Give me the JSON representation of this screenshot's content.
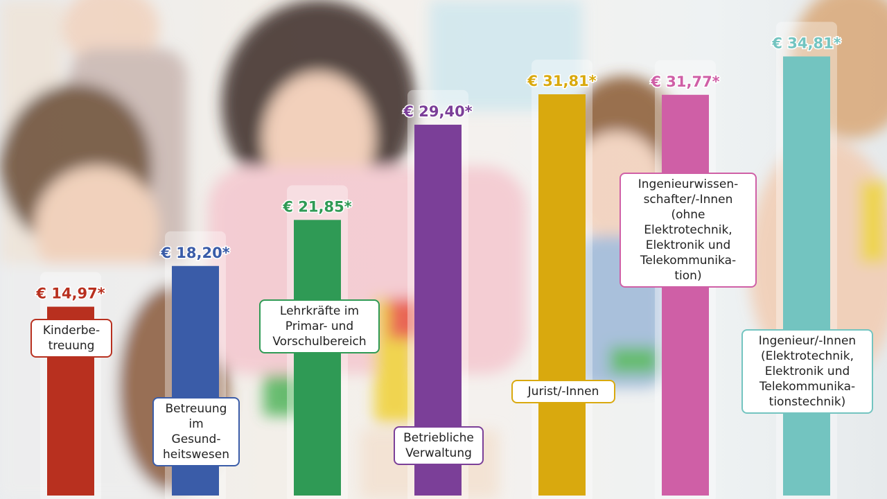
{
  "chart_data": {
    "type": "bar",
    "categories": [
      "Kinderbe-\ntreuung",
      "Betreuung\nim\nGesund-\nheitswesen",
      "Lehrkräfte im\nPrimar- und\nVorschulbereich",
      "Betriebliche\nVerwaltung",
      "Jurist/-Innen",
      "Ingenieurwissen-\nschafter/-Innen\n(ohne\nElektrotechnik,\nElektronik und\nTelekommunika-\ntion)",
      "Ingenieur/-Innen\n(Elektrotechnik,\nElektronik und\nTelekommunika-\ntionstechnik)"
    ],
    "values": [
      14.97,
      18.2,
      21.85,
      29.4,
      31.81,
      31.77,
      34.81
    ],
    "value_labels": [
      "€ 14,97*",
      "€ 18,20*",
      "€ 21,85*",
      "€ 29,40*",
      "€ 31,81*",
      "€ 31,77*",
      "€ 34,81*"
    ],
    "colors": [
      "#b8301f",
      "#3a5ca8",
      "#2f9a55",
      "#7b3f98",
      "#d9a90e",
      "#cf5fa6",
      "#73c4c0"
    ],
    "ylim": [
      0,
      35
    ],
    "title": "",
    "xlabel": "",
    "ylabel": ""
  }
}
